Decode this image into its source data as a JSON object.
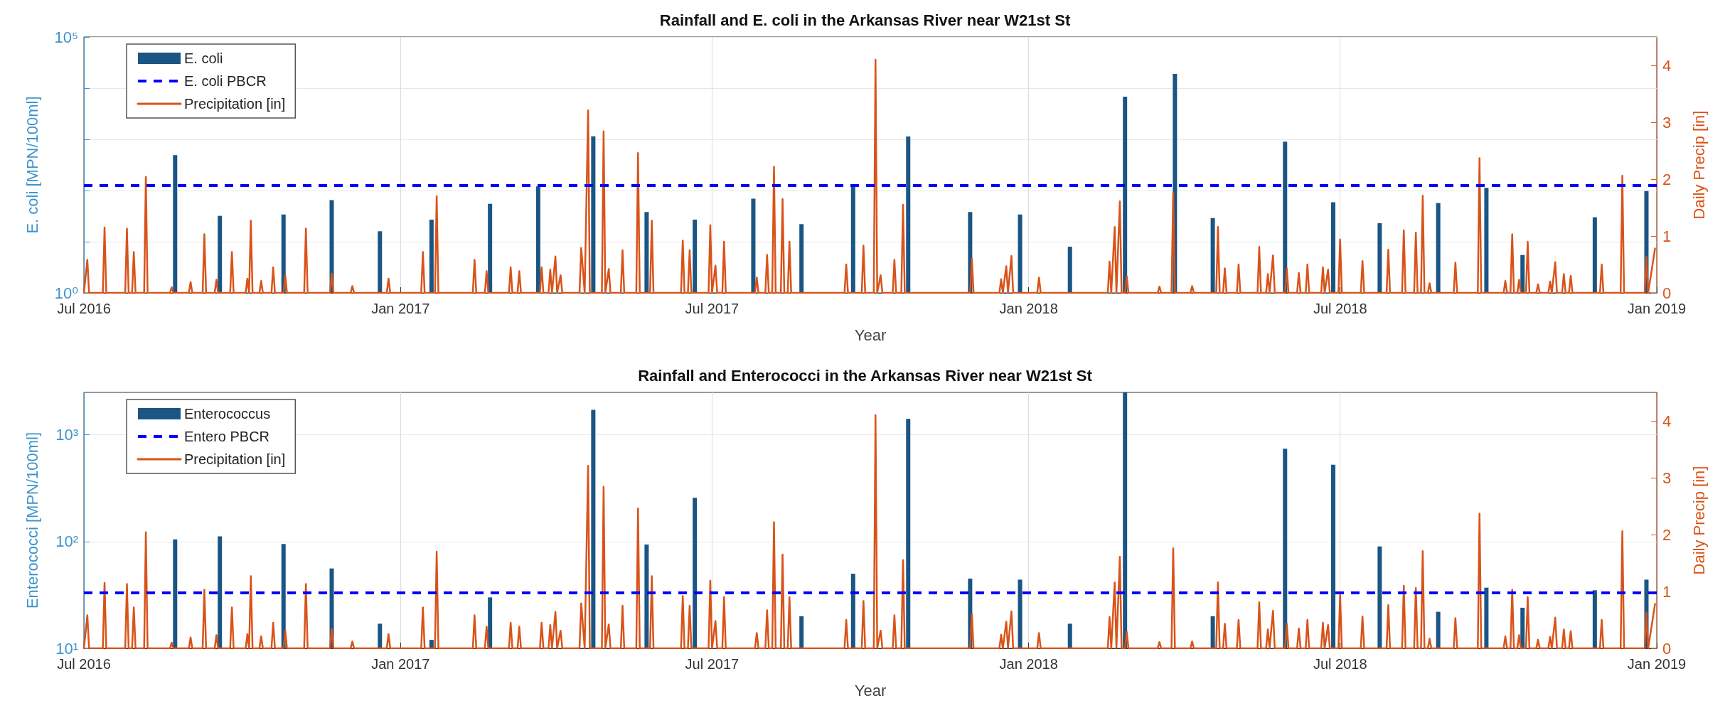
{
  "chart_data": [
    {
      "type": "bar",
      "title": "Rainfall and E. coli in the Arkansas River near W21st St",
      "xlabel": "Year",
      "ylabel": "E. coli [MPN/100ml]",
      "y2label": "Daily Precip [in]",
      "log": true,
      "grid": true,
      "legend": "top left",
      "xlim": [
        "2016-07-01",
        "2019-01-01"
      ],
      "xticks": [
        {
          "value": "2016-07-01",
          "label": "Jul 2016"
        },
        {
          "value": "2017-01-01",
          "label": "Jan 2017"
        },
        {
          "value": "2017-07-01",
          "label": "Jul 2017"
        },
        {
          "value": "2018-01-01",
          "label": "Jan 2018"
        },
        {
          "value": "2018-07-01",
          "label": "Jul 2018"
        },
        {
          "value": "2019-01-01",
          "label": "Jan 2019"
        }
      ],
      "ylim": [
        1,
        100000
      ],
      "yticks": [
        {
          "value": 1,
          "label": "10⁰"
        },
        {
          "value": 10,
          "label": null
        },
        {
          "value": 100,
          "label": null
        },
        {
          "value": 1000,
          "label": null
        },
        {
          "value": 10000,
          "label": null
        },
        {
          "value": 100000,
          "label": "10⁵"
        }
      ],
      "y2lim": [
        0,
        4.5
      ],
      "y2ticks": [
        0,
        1,
        2,
        3,
        4
      ],
      "ref_lines": [
        {
          "axis": "y",
          "value": 126,
          "label": "E. coli PBCR",
          "color": "#0000ff",
          "line_style": "dashed"
        }
      ],
      "series": [
        {
          "name": "E. coli",
          "color": "#1a5584",
          "x": [
            "2016-08-23",
            "2016-09-18",
            "2016-10-25",
            "2016-11-22",
            "2016-12-20",
            "2017-01-19",
            "2017-02-22",
            "2017-03-22",
            "2017-04-23",
            "2017-05-24",
            "2017-06-21",
            "2017-07-25",
            "2017-08-22",
            "2017-09-21",
            "2017-10-23",
            "2017-11-28",
            "2017-12-27",
            "2018-01-25",
            "2018-02-26",
            "2018-03-27",
            "2018-04-18",
            "2018-05-30",
            "2018-06-27",
            "2018-07-24",
            "2018-08-27",
            "2018-09-24",
            "2018-10-15",
            "2018-11-26",
            "2018-12-26"
          ],
          "values": [
            490,
            32,
            34,
            65,
            16,
            27,
            55,
            120,
            1150,
            38,
            27,
            69,
            22,
            123,
            1140,
            38,
            34,
            8,
            6800,
            19000,
            29,
            900,
            59,
            23,
            57,
            113,
            5.5,
            30,
            98
          ]
        },
        {
          "name": "Precipitation [in]",
          "type": "line",
          "axis": "y2",
          "color": "#d95319",
          "line_style": "solid",
          "marker": "none",
          "x": [
            "2016-07-01",
            "2016-07-03",
            "2016-07-04",
            "2016-07-12",
            "2016-07-13",
            "2016-07-14",
            "2016-07-25",
            "2016-07-26",
            "2016-07-27",
            "2016-07-29",
            "2016-07-30",
            "2016-07-31",
            "2016-08-05",
            "2016-08-06",
            "2016-08-07",
            "2016-08-20",
            "2016-08-21",
            "2016-08-22",
            "2016-08-31",
            "2016-09-01",
            "2016-09-02",
            "2016-09-08",
            "2016-09-09",
            "2016-09-10",
            "2016-09-15",
            "2016-09-16",
            "2016-09-17",
            "2016-09-24",
            "2016-09-25",
            "2016-09-26",
            "2016-10-03",
            "2016-10-04",
            "2016-10-05",
            "2016-10-06",
            "2016-10-07",
            "2016-10-11",
            "2016-10-12",
            "2016-10-13",
            "2016-10-18",
            "2016-10-19",
            "2016-10-20",
            "2016-10-25",
            "2016-10-26",
            "2016-10-27",
            "2016-11-06",
            "2016-11-07",
            "2016-11-08",
            "2016-11-21",
            "2016-11-22",
            "2016-11-23",
            "2016-12-03",
            "2016-12-04",
            "2016-12-05",
            "2016-12-24",
            "2016-12-25",
            "2016-12-26",
            "2017-01-13",
            "2017-01-14",
            "2017-01-15",
            "2017-01-21",
            "2017-01-22",
            "2017-01-23",
            "2017-02-12",
            "2017-02-13",
            "2017-02-14",
            "2017-02-19",
            "2017-02-20",
            "2017-02-21",
            "2017-03-05",
            "2017-03-06",
            "2017-03-07",
            "2017-03-10",
            "2017-03-11",
            "2017-03-12",
            "2017-03-23",
            "2017-03-24",
            "2017-03-25",
            "2017-03-28",
            "2017-03-29",
            "2017-03-30",
            "2017-04-01",
            "2017-04-02",
            "2017-04-04",
            "2017-04-05",
            "2017-04-15",
            "2017-04-16",
            "2017-04-18",
            "2017-04-20",
            "2017-04-21",
            "2017-04-28",
            "2017-04-29",
            "2017-04-30",
            "2017-05-02",
            "2017-05-03",
            "2017-05-09",
            "2017-05-10",
            "2017-05-11",
            "2017-05-18",
            "2017-05-19",
            "2017-05-20",
            "2017-05-26",
            "2017-05-27",
            "2017-05-28",
            "2017-06-13",
            "2017-06-14",
            "2017-06-15",
            "2017-06-17",
            "2017-06-18",
            "2017-06-19",
            "2017-06-29",
            "2017-06-30",
            "2017-07-01",
            "2017-07-03",
            "2017-07-04",
            "2017-07-07",
            "2017-07-08",
            "2017-07-09",
            "2017-07-26",
            "2017-07-27",
            "2017-07-28",
            "2017-08-01",
            "2017-08-02",
            "2017-08-03",
            "2017-08-05",
            "2017-08-06",
            "2017-08-07",
            "2017-08-10",
            "2017-08-11",
            "2017-08-12",
            "2017-08-14",
            "2017-08-15",
            "2017-08-16",
            "2017-09-16",
            "2017-09-17",
            "2017-09-18",
            "2017-09-26",
            "2017-09-27",
            "2017-09-28",
            "2017-10-03",
            "2017-10-04",
            "2017-10-05",
            "2017-10-07",
            "2017-10-08",
            "2017-10-14",
            "2017-10-15",
            "2017-10-16",
            "2017-10-19",
            "2017-10-20",
            "2017-10-21",
            "2017-11-28",
            "2017-11-29",
            "2017-11-30",
            "2017-12-15",
            "2017-12-16",
            "2017-12-17",
            "2017-12-19",
            "2017-12-20",
            "2017-12-22",
            "2017-12-23",
            "2018-01-06",
            "2018-01-07",
            "2018-01-08",
            "2018-02-16",
            "2018-02-17",
            "2018-02-18",
            "2018-02-20",
            "2018-02-21",
            "2018-02-23",
            "2018-02-24",
            "2018-02-26",
            "2018-02-27",
            "2018-02-28",
            "2018-03-17",
            "2018-03-18",
            "2018-03-19",
            "2018-03-25",
            "2018-03-26",
            "2018-03-27",
            "2018-04-05",
            "2018-04-06",
            "2018-04-07",
            "2018-04-20",
            "2018-04-21",
            "2018-04-22",
            "2018-04-24",
            "2018-04-25",
            "2018-04-26",
            "2018-05-02",
            "2018-05-03",
            "2018-05-04",
            "2018-05-14",
            "2018-05-15",
            "2018-05-16",
            "2018-05-19",
            "2018-05-20",
            "2018-05-21",
            "2018-05-23",
            "2018-05-24",
            "2018-05-30",
            "2018-05-31",
            "2018-06-01",
            "2018-06-06",
            "2018-06-07",
            "2018-06-08",
            "2018-06-11",
            "2018-06-12",
            "2018-06-13",
            "2018-06-20",
            "2018-06-21",
            "2018-06-22",
            "2018-06-24",
            "2018-06-25",
            "2018-06-30",
            "2018-07-01",
            "2018-07-02",
            "2018-07-13",
            "2018-07-14",
            "2018-07-15",
            "2018-07-28",
            "2018-07-29",
            "2018-07-30",
            "2018-08-06",
            "2018-08-07",
            "2018-08-08",
            "2018-08-13",
            "2018-08-14",
            "2018-08-15",
            "2018-08-17",
            "2018-08-18",
            "2018-08-19",
            "2018-08-21",
            "2018-08-22",
            "2018-08-23",
            "2018-09-05",
            "2018-09-06",
            "2018-09-07",
            "2018-09-19",
            "2018-09-20",
            "2018-09-21",
            "2018-10-04",
            "2018-10-05",
            "2018-10-06",
            "2018-10-08",
            "2018-10-09",
            "2018-10-10",
            "2018-10-12",
            "2018-10-13",
            "2018-10-14",
            "2018-10-17",
            "2018-10-18",
            "2018-10-19",
            "2018-10-23",
            "2018-10-24",
            "2018-10-25",
            "2018-10-30",
            "2018-10-31",
            "2018-11-01",
            "2018-11-03",
            "2018-11-04",
            "2018-11-07",
            "2018-11-08",
            "2018-11-09",
            "2018-11-11",
            "2018-11-12",
            "2018-11-13",
            "2018-11-29",
            "2018-11-30",
            "2018-12-01",
            "2018-12-11",
            "2018-12-12",
            "2018-12-13",
            "2018-12-25",
            "2018-12-26",
            "2018-12-27",
            "2018-12-31"
          ],
          "values": [
            0,
            0.58,
            0,
            0,
            1.15,
            0,
            0,
            1.13,
            0,
            0,
            0.72,
            0,
            0,
            2.04,
            0,
            0,
            0.1,
            0,
            0,
            0.19,
            0,
            0,
            1.03,
            0,
            0,
            0.23,
            0,
            0,
            0.72,
            0,
            0,
            0.25,
            0,
            1.27,
            0,
            0,
            0.21,
            0,
            0,
            0.45,
            0,
            0,
            0.31,
            0,
            0,
            1.13,
            0,
            0,
            0.34,
            0,
            0,
            0.12,
            0,
            0,
            0.25,
            0,
            0,
            0.72,
            0,
            0,
            1.7,
            0,
            0,
            0.58,
            0,
            0,
            0.38,
            0,
            0,
            0.45,
            0,
            0,
            0.38,
            0,
            0,
            0.45,
            0,
            0,
            0.41,
            0,
            0.64,
            0,
            0.31,
            0,
            0,
            0.79,
            0,
            3.21,
            0,
            0,
            2.84,
            0,
            0.42,
            0,
            0,
            0.75,
            0,
            0,
            2.46,
            0,
            0,
            1.27,
            0,
            0,
            0.92,
            0,
            0,
            0.75,
            0,
            0,
            1.19,
            0,
            0.48,
            0,
            0,
            0.9,
            0,
            0,
            0.27,
            0,
            0,
            0.67,
            0,
            0,
            2.22,
            0,
            0,
            1.65,
            0,
            0,
            0.9,
            0,
            0,
            0.5,
            0,
            0,
            0.83,
            0,
            0,
            4.1,
            0,
            0.31,
            0,
            0,
            0.58,
            0,
            0,
            1.55,
            0,
            0,
            0.6,
            0,
            0,
            0.24,
            0,
            0.47,
            0,
            0.65,
            0,
            0,
            0.27,
            0,
            0,
            0.55,
            0,
            1.16,
            0,
            1.61,
            0,
            0,
            0.29,
            0,
            0,
            0.11,
            0,
            0,
            1.76,
            0,
            0,
            0.12,
            0,
            0,
            1.16,
            0,
            0,
            0.43,
            0,
            0,
            0.5,
            0,
            0,
            0.81,
            0,
            0,
            0.33,
            0,
            0.66,
            0,
            0,
            0.43,
            0,
            0,
            0.35,
            0,
            0,
            0.5,
            0,
            0,
            0.45,
            0,
            0.41,
            0,
            0,
            0.94,
            0,
            0,
            0.56,
            0,
            0,
            0.76,
            0,
            0,
            1.1,
            0,
            0,
            1.06,
            0,
            0,
            1.71,
            0,
            0,
            0.17,
            0,
            0,
            0.53,
            0,
            0,
            2.37,
            0,
            0,
            0.21,
            0,
            0,
            1.03,
            0,
            0,
            0.23,
            0,
            0,
            0.9,
            0,
            0,
            0.15,
            0,
            0,
            0.2,
            0,
            0.54,
            0,
            0,
            0.33,
            0,
            0,
            0.3,
            0,
            0,
            0.5,
            0,
            0,
            2.06,
            0,
            0,
            0.63,
            0,
            0.78
          ]
        }
      ]
    },
    {
      "type": "bar",
      "title": "Rainfall and Enterococci in the Arkansas River near W21st St",
      "xlabel": "Year",
      "ylabel": "Enterococci [MPN/100ml]",
      "y2label": "Daily Precip [in]",
      "log": true,
      "grid": true,
      "legend": "top left",
      "xlim": [
        "2016-07-01",
        "2019-01-01"
      ],
      "xticks": [
        {
          "value": "2016-07-01",
          "label": "Jul 2016"
        },
        {
          "value": "2017-01-01",
          "label": "Jan 2017"
        },
        {
          "value": "2017-07-01",
          "label": "Jul 2017"
        },
        {
          "value": "2018-01-01",
          "label": "Jan 2018"
        },
        {
          "value": "2018-07-01",
          "label": "Jul 2018"
        },
        {
          "value": "2019-01-01",
          "label": "Jan 2019"
        }
      ],
      "ylim": [
        10,
        2500
      ],
      "yticks": [
        {
          "value": 10,
          "label": "10¹"
        },
        {
          "value": 100,
          "label": "10²"
        },
        {
          "value": 1000,
          "label": "10³"
        }
      ],
      "y2lim": [
        0,
        4.5
      ],
      "y2ticks": [
        0,
        1,
        2,
        3,
        4
      ],
      "ref_lines": [
        {
          "axis": "y",
          "value": 33,
          "label": "Entero PBCR",
          "color": "#0000ff",
          "line_style": "dashed"
        }
      ],
      "series": [
        {
          "name": "Enterococcus",
          "color": "#1a5584",
          "x": [
            "2016-08-23",
            "2016-09-18",
            "2016-10-25",
            "2016-11-22",
            "2016-12-20",
            "2017-01-19",
            "2017-02-22",
            "2017-03-22",
            "2017-04-23",
            "2017-05-24",
            "2017-06-21",
            "2017-07-25",
            "2017-08-22",
            "2017-09-21",
            "2017-10-23",
            "2017-11-28",
            "2017-12-27",
            "2018-01-25",
            "2018-02-26",
            "2018-03-27",
            "2018-04-18",
            "2018-05-30",
            "2018-06-27",
            "2018-07-24",
            "2018-08-27",
            "2018-09-24",
            "2018-10-15",
            "2018-11-26",
            "2018-12-26"
          ],
          "values": [
            105,
            112,
            95,
            56,
            17,
            12,
            30,
            null,
            1720,
            94,
            257,
            null,
            20,
            50,
            1410,
            45,
            44,
            17,
            2500,
            null,
            20,
            740,
            525,
            90,
            22,
            37,
            24,
            35,
            44
          ]
        },
        {
          "name": "Precipitation [in]",
          "type": "line",
          "axis": "y2",
          "color": "#d95319",
          "line_style": "solid",
          "marker": "none",
          "x": [
            "2016-07-01",
            "2016-07-03",
            "2016-07-04",
            "2016-07-12",
            "2016-07-13",
            "2016-07-14",
            "2016-07-25",
            "2016-07-26",
            "2016-07-27",
            "2016-07-29",
            "2016-07-30",
            "2016-07-31",
            "2016-08-05",
            "2016-08-06",
            "2016-08-07",
            "2016-08-20",
            "2016-08-21",
            "2016-08-22",
            "2016-08-31",
            "2016-09-01",
            "2016-09-02",
            "2016-09-08",
            "2016-09-09",
            "2016-09-10",
            "2016-09-15",
            "2016-09-16",
            "2016-09-17",
            "2016-09-24",
            "2016-09-25",
            "2016-09-26",
            "2016-10-03",
            "2016-10-04",
            "2016-10-05",
            "2016-10-06",
            "2016-10-07",
            "2016-10-11",
            "2016-10-12",
            "2016-10-13",
            "2016-10-18",
            "2016-10-19",
            "2016-10-20",
            "2016-10-25",
            "2016-10-26",
            "2016-10-27",
            "2016-11-06",
            "2016-11-07",
            "2016-11-08",
            "2016-11-21",
            "2016-11-22",
            "2016-11-23",
            "2016-12-03",
            "2016-12-04",
            "2016-12-05",
            "2016-12-24",
            "2016-12-25",
            "2016-12-26",
            "2017-01-13",
            "2017-01-14",
            "2017-01-15",
            "2017-01-21",
            "2017-01-22",
            "2017-01-23",
            "2017-02-12",
            "2017-02-13",
            "2017-02-14",
            "2017-02-19",
            "2017-02-20",
            "2017-02-21",
            "2017-03-05",
            "2017-03-06",
            "2017-03-07",
            "2017-03-10",
            "2017-03-11",
            "2017-03-12",
            "2017-03-23",
            "2017-03-24",
            "2017-03-25",
            "2017-03-28",
            "2017-03-29",
            "2017-03-30",
            "2017-04-01",
            "2017-04-02",
            "2017-04-04",
            "2017-04-05",
            "2017-04-15",
            "2017-04-16",
            "2017-04-18",
            "2017-04-20",
            "2017-04-21",
            "2017-04-28",
            "2017-04-29",
            "2017-04-30",
            "2017-05-02",
            "2017-05-03",
            "2017-05-09",
            "2017-05-10",
            "2017-05-11",
            "2017-05-18",
            "2017-05-19",
            "2017-05-20",
            "2017-05-26",
            "2017-05-27",
            "2017-05-28",
            "2017-06-13",
            "2017-06-14",
            "2017-06-15",
            "2017-06-17",
            "2017-06-18",
            "2017-06-19",
            "2017-06-29",
            "2017-06-30",
            "2017-07-01",
            "2017-07-03",
            "2017-07-04",
            "2017-07-07",
            "2017-07-08",
            "2017-07-09",
            "2017-07-26",
            "2017-07-27",
            "2017-07-28",
            "2017-08-01",
            "2017-08-02",
            "2017-08-03",
            "2017-08-05",
            "2017-08-06",
            "2017-08-07",
            "2017-08-10",
            "2017-08-11",
            "2017-08-12",
            "2017-08-14",
            "2017-08-15",
            "2017-08-16",
            "2017-09-16",
            "2017-09-17",
            "2017-09-18",
            "2017-09-26",
            "2017-09-27",
            "2017-09-28",
            "2017-10-03",
            "2017-10-04",
            "2017-10-05",
            "2017-10-07",
            "2017-10-08",
            "2017-10-14",
            "2017-10-15",
            "2017-10-16",
            "2017-10-19",
            "2017-10-20",
            "2017-10-21",
            "2017-11-28",
            "2017-11-29",
            "2017-11-30",
            "2017-12-15",
            "2017-12-16",
            "2017-12-17",
            "2017-12-19",
            "2017-12-20",
            "2017-12-22",
            "2017-12-23",
            "2018-01-06",
            "2018-01-07",
            "2018-01-08",
            "2018-02-16",
            "2018-02-17",
            "2018-02-18",
            "2018-02-20",
            "2018-02-21",
            "2018-02-23",
            "2018-02-24",
            "2018-02-26",
            "2018-02-27",
            "2018-02-28",
            "2018-03-17",
            "2018-03-18",
            "2018-03-19",
            "2018-03-25",
            "2018-03-26",
            "2018-03-27",
            "2018-04-05",
            "2018-04-06",
            "2018-04-07",
            "2018-04-20",
            "2018-04-21",
            "2018-04-22",
            "2018-04-24",
            "2018-04-25",
            "2018-04-26",
            "2018-05-02",
            "2018-05-03",
            "2018-05-04",
            "2018-05-14",
            "2018-05-15",
            "2018-05-16",
            "2018-05-19",
            "2018-05-20",
            "2018-05-21",
            "2018-05-23",
            "2018-05-24",
            "2018-05-30",
            "2018-05-31",
            "2018-06-01",
            "2018-06-06",
            "2018-06-07",
            "2018-06-08",
            "2018-06-11",
            "2018-06-12",
            "2018-06-13",
            "2018-06-20",
            "2018-06-21",
            "2018-06-22",
            "2018-06-24",
            "2018-06-25",
            "2018-06-30",
            "2018-07-01",
            "2018-07-02",
            "2018-07-13",
            "2018-07-14",
            "2018-07-15",
            "2018-07-28",
            "2018-07-29",
            "2018-07-30",
            "2018-08-06",
            "2018-08-07",
            "2018-08-08",
            "2018-08-13",
            "2018-08-14",
            "2018-08-15",
            "2018-08-17",
            "2018-08-18",
            "2018-08-19",
            "2018-08-21",
            "2018-08-22",
            "2018-08-23",
            "2018-09-05",
            "2018-09-06",
            "2018-09-07",
            "2018-09-19",
            "2018-09-20",
            "2018-09-21",
            "2018-10-04",
            "2018-10-05",
            "2018-10-06",
            "2018-10-08",
            "2018-10-09",
            "2018-10-10",
            "2018-10-12",
            "2018-10-13",
            "2018-10-14",
            "2018-10-17",
            "2018-10-18",
            "2018-10-19",
            "2018-10-23",
            "2018-10-24",
            "2018-10-25",
            "2018-10-30",
            "2018-10-31",
            "2018-11-01",
            "2018-11-03",
            "2018-11-04",
            "2018-11-07",
            "2018-11-08",
            "2018-11-09",
            "2018-11-11",
            "2018-11-12",
            "2018-11-13",
            "2018-11-29",
            "2018-11-30",
            "2018-12-01",
            "2018-12-11",
            "2018-12-12",
            "2018-12-13",
            "2018-12-25",
            "2018-12-26",
            "2018-12-27",
            "2018-12-31"
          ],
          "values": [
            0,
            0.58,
            0,
            0,
            1.15,
            0,
            0,
            1.13,
            0,
            0,
            0.72,
            0,
            0,
            2.04,
            0,
            0,
            0.1,
            0,
            0,
            0.19,
            0,
            0,
            1.03,
            0,
            0,
            0.23,
            0,
            0,
            0.72,
            0,
            0,
            0.25,
            0,
            1.27,
            0,
            0,
            0.21,
            0,
            0,
            0.45,
            0,
            0,
            0.31,
            0,
            0,
            1.13,
            0,
            0,
            0.34,
            0,
            0,
            0.12,
            0,
            0,
            0.25,
            0,
            0,
            0.72,
            0,
            0,
            1.7,
            0,
            0,
            0.58,
            0,
            0,
            0.38,
            0,
            0,
            0.45,
            0,
            0,
            0.38,
            0,
            0,
            0.45,
            0,
            0,
            0.41,
            0,
            0.64,
            0,
            0.31,
            0,
            0,
            0.79,
            0,
            3.21,
            0,
            0,
            2.84,
            0,
            0.42,
            0,
            0,
            0.75,
            0,
            0,
            2.46,
            0,
            0,
            1.27,
            0,
            0,
            0.92,
            0,
            0,
            0.75,
            0,
            0,
            1.19,
            0,
            0.48,
            0,
            0,
            0.9,
            0,
            0,
            0.27,
            0,
            0,
            0.67,
            0,
            0,
            2.22,
            0,
            0,
            1.65,
            0,
            0,
            0.9,
            0,
            0,
            0.5,
            0,
            0,
            0.83,
            0,
            0,
            4.1,
            0,
            0.31,
            0,
            0,
            0.58,
            0,
            0,
            1.55,
            0,
            0,
            0.6,
            0,
            0,
            0.24,
            0,
            0.47,
            0,
            0.65,
            0,
            0,
            0.27,
            0,
            0,
            0.55,
            0,
            1.16,
            0,
            1.61,
            0,
            0,
            0.29,
            0,
            0,
            0.11,
            0,
            0,
            1.76,
            0,
            0,
            0.12,
            0,
            0,
            1.16,
            0,
            0,
            0.43,
            0,
            0,
            0.5,
            0,
            0,
            0.81,
            0,
            0,
            0.33,
            0,
            0.66,
            0,
            0,
            0.43,
            0,
            0,
            0.35,
            0,
            0,
            0.5,
            0,
            0,
            0.45,
            0,
            0.41,
            0,
            0,
            0.94,
            0,
            0,
            0.56,
            0,
            0,
            0.76,
            0,
            0,
            1.1,
            0,
            0,
            1.06,
            0,
            0,
            1.71,
            0,
            0,
            0.17,
            0,
            0,
            0.53,
            0,
            0,
            2.37,
            0,
            0,
            0.21,
            0,
            0,
            1.03,
            0,
            0,
            0.23,
            0,
            0,
            0.9,
            0,
            0,
            0.15,
            0,
            0,
            0.2,
            0,
            0.54,
            0,
            0,
            0.33,
            0,
            0,
            0.3,
            0,
            0,
            0.5,
            0,
            0,
            2.06,
            0,
            0,
            0.63,
            0,
            0.78
          ]
        }
      ]
    }
  ]
}
